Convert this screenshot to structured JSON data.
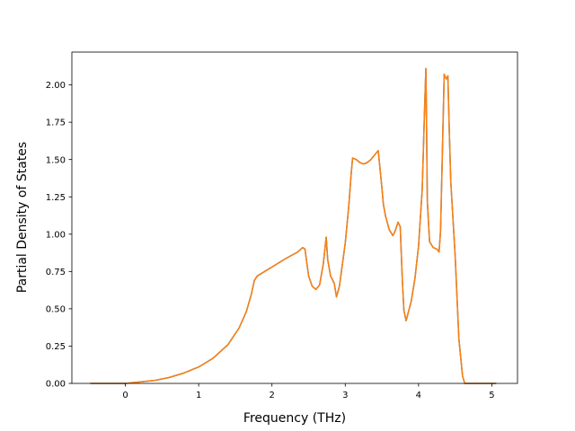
{
  "chart_data": {
    "type": "line",
    "title": "",
    "xlabel": "Frequency (THz)",
    "ylabel": "Partial Density of States",
    "xlim": [
      -0.73,
      5.35
    ],
    "ylim": [
      0.0,
      2.22
    ],
    "grid": false,
    "legend": "none",
    "x_ticks": [
      0,
      1,
      2,
      3,
      4,
      5
    ],
    "x_tick_labels": [
      "0",
      "1",
      "2",
      "3",
      "4",
      "5"
    ],
    "y_ticks": [
      0.0,
      0.25,
      0.5,
      0.75,
      1.0,
      1.25,
      1.5,
      1.75,
      2.0
    ],
    "y_tick_labels": [
      "0.00",
      "0.25",
      "0.50",
      "0.75",
      "1.00",
      "1.25",
      "1.50",
      "1.75",
      "2.00"
    ],
    "series": [
      {
        "color": "#1f77b4",
        "x": [
          -0.47,
          0.0,
          0.2,
          0.4,
          0.6,
          0.8,
          1.0,
          1.2,
          1.4,
          1.55,
          1.65,
          1.72,
          1.76,
          1.8,
          2.0,
          2.2,
          2.35,
          2.42,
          2.45,
          2.5,
          2.55,
          2.6,
          2.65,
          2.7,
          2.74,
          2.76,
          2.8,
          2.85,
          2.88,
          2.92,
          3.0,
          3.05,
          3.08,
          3.1,
          3.15,
          3.2,
          3.25,
          3.3,
          3.35,
          3.4,
          3.45,
          3.5,
          3.52,
          3.55,
          3.6,
          3.65,
          3.68,
          3.72,
          3.75,
          3.78,
          3.8,
          3.83,
          3.9,
          3.95,
          4.0,
          4.05,
          4.08,
          4.1,
          4.11,
          4.12,
          4.15,
          4.2,
          4.25,
          4.28,
          4.3,
          4.35,
          4.38,
          4.4,
          4.42,
          4.44,
          4.5,
          4.55,
          4.6,
          4.63,
          4.67,
          5.05
        ],
        "y": [
          0.0,
          0.0,
          0.01,
          0.02,
          0.04,
          0.07,
          0.11,
          0.17,
          0.26,
          0.37,
          0.48,
          0.6,
          0.69,
          0.72,
          0.78,
          0.84,
          0.88,
          0.91,
          0.9,
          0.72,
          0.65,
          0.63,
          0.66,
          0.8,
          0.98,
          0.83,
          0.72,
          0.67,
          0.58,
          0.65,
          0.94,
          1.2,
          1.4,
          1.51,
          1.5,
          1.48,
          1.47,
          1.48,
          1.5,
          1.53,
          1.56,
          1.31,
          1.2,
          1.12,
          1.03,
          0.99,
          1.02,
          1.08,
          1.05,
          0.68,
          0.49,
          0.42,
          0.55,
          0.7,
          0.92,
          1.3,
          1.8,
          2.11,
          1.7,
          1.22,
          0.95,
          0.91,
          0.9,
          0.88,
          1.02,
          2.07,
          2.04,
          2.06,
          1.68,
          1.35,
          0.85,
          0.3,
          0.05,
          0.0,
          0.0,
          0.0
        ]
      },
      {
        "color": "#ff7f0e",
        "x": [
          -0.47,
          0.0,
          0.2,
          0.4,
          0.6,
          0.8,
          1.0,
          1.2,
          1.4,
          1.55,
          1.65,
          1.72,
          1.76,
          1.8,
          2.0,
          2.2,
          2.35,
          2.42,
          2.45,
          2.5,
          2.55,
          2.6,
          2.65,
          2.7,
          2.74,
          2.76,
          2.8,
          2.85,
          2.88,
          2.92,
          3.0,
          3.05,
          3.08,
          3.1,
          3.15,
          3.2,
          3.25,
          3.3,
          3.35,
          3.4,
          3.45,
          3.5,
          3.52,
          3.55,
          3.6,
          3.65,
          3.68,
          3.72,
          3.75,
          3.78,
          3.8,
          3.83,
          3.9,
          3.95,
          4.0,
          4.05,
          4.08,
          4.1,
          4.11,
          4.12,
          4.15,
          4.2,
          4.25,
          4.28,
          4.3,
          4.35,
          4.38,
          4.4,
          4.42,
          4.44,
          4.5,
          4.55,
          4.6,
          4.63,
          4.67,
          5.05
        ],
        "y": [
          0.0,
          0.0,
          0.01,
          0.02,
          0.04,
          0.07,
          0.11,
          0.17,
          0.26,
          0.37,
          0.48,
          0.6,
          0.69,
          0.72,
          0.78,
          0.84,
          0.88,
          0.91,
          0.9,
          0.72,
          0.65,
          0.63,
          0.66,
          0.8,
          0.98,
          0.83,
          0.72,
          0.67,
          0.58,
          0.65,
          0.94,
          1.2,
          1.4,
          1.51,
          1.5,
          1.48,
          1.47,
          1.48,
          1.5,
          1.53,
          1.56,
          1.31,
          1.2,
          1.12,
          1.03,
          0.99,
          1.02,
          1.08,
          1.05,
          0.68,
          0.49,
          0.42,
          0.55,
          0.7,
          0.92,
          1.3,
          1.8,
          2.11,
          1.7,
          1.22,
          0.95,
          0.91,
          0.9,
          0.88,
          1.02,
          2.07,
          2.04,
          2.06,
          1.68,
          1.35,
          0.85,
          0.3,
          0.05,
          0.0,
          0.0,
          0.0
        ]
      }
    ]
  }
}
